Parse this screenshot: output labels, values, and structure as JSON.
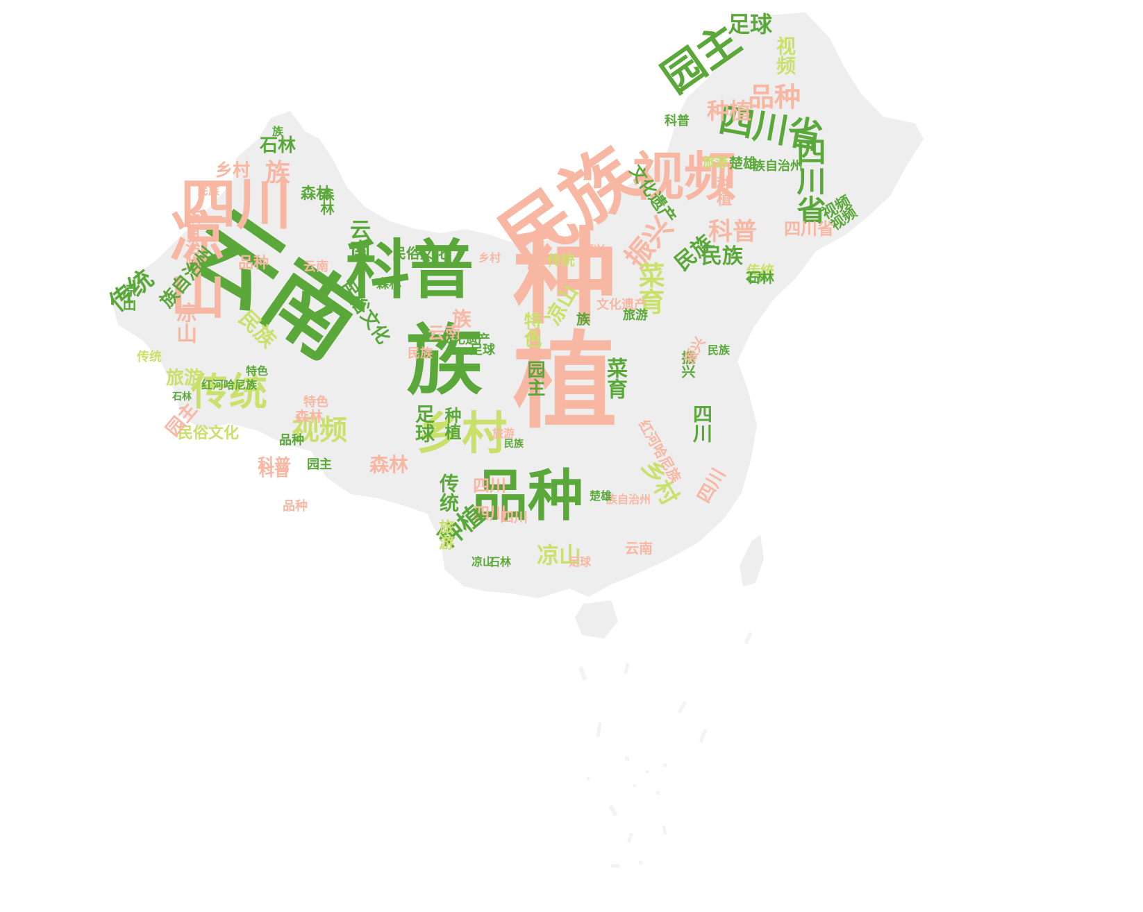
{
  "palette": {
    "green_dark": "#5aa83a",
    "green_light": "#c9e06b",
    "salmon": "#f7b7a3",
    "map_fill": "#eeeeee"
  },
  "words": [
    {
      "text": "种植",
      "color": "salmon"
    },
    {
      "text": "云南",
      "color": "green_dark"
    },
    {
      "text": "科普",
      "color": "green_dark"
    },
    {
      "text": "族",
      "color": "green_dark"
    },
    {
      "text": "民族",
      "color": "salmon"
    },
    {
      "text": "视频",
      "color": "salmon"
    },
    {
      "text": "四川",
      "color": "salmon"
    },
    {
      "text": "凉山",
      "color": "salmon"
    },
    {
      "text": "品种",
      "color": "green_dark"
    },
    {
      "text": "乡村",
      "color": "green_light"
    },
    {
      "text": "传统",
      "color": "green_light"
    },
    {
      "text": "园主",
      "color": "green_dark"
    },
    {
      "text": "四川省",
      "color": "green_dark"
    },
    {
      "text": "品种",
      "color": "salmon"
    },
    {
      "text": "种植",
      "color": "salmon"
    },
    {
      "text": "足球",
      "color": "green_dark"
    },
    {
      "text": "视频",
      "color": "green_light"
    },
    {
      "text": "四川省",
      "color": "green_dark"
    },
    {
      "text": "科普",
      "color": "salmon"
    },
    {
      "text": "振兴",
      "color": "salmon"
    },
    {
      "text": "文化遗产",
      "color": "green_dark"
    },
    {
      "text": "民族",
      "color": "green_dark"
    },
    {
      "text": "视频",
      "color": "green_dark"
    },
    {
      "text": "菜育",
      "color": "green_light"
    },
    {
      "text": "菜育",
      "color": "green_dark"
    },
    {
      "text": "四川",
      "color": "green_dark"
    },
    {
      "text": "乡村",
      "color": "green_light"
    },
    {
      "text": "凉山",
      "color": "green_light"
    },
    {
      "text": "四川",
      "color": "salmon"
    },
    {
      "text": "四川",
      "color": "salmon"
    },
    {
      "text": "种植",
      "color": "green_dark"
    },
    {
      "text": "传统",
      "color": "green_dark"
    },
    {
      "text": "云南",
      "color": "salmon"
    },
    {
      "text": "视频",
      "color": "green_light"
    },
    {
      "text": "传统",
      "color": "green_dark"
    },
    {
      "text": "民族",
      "color": "green_light"
    },
    {
      "text": "森林",
      "color": "salmon"
    },
    {
      "text": "科普",
      "color": "salmon"
    },
    {
      "text": "园主",
      "color": "green_dark"
    },
    {
      "text": "民俗文化",
      "color": "green_light"
    },
    {
      "text": "旅游",
      "color": "green_light"
    },
    {
      "text": "红河哈尼族",
      "color": "green_dark"
    },
    {
      "text": "石林",
      "color": "green_dark"
    },
    {
      "text": "乡村",
      "color": "salmon"
    },
    {
      "text": "族",
      "color": "salmon"
    },
    {
      "text": "石林",
      "color": "green_dark"
    },
    {
      "text": "森林",
      "color": "green_dark"
    },
    {
      "text": "民族",
      "color": "salmon"
    },
    {
      "text": "族自治州",
      "color": "salmon"
    },
    {
      "text": "品种",
      "color": "salmon"
    },
    {
      "text": "云南",
      "color": "green_dark"
    },
    {
      "text": "民俗文化",
      "color": "green_dark"
    },
    {
      "text": "特色",
      "color": "green_light"
    },
    {
      "text": "足球",
      "color": "green_dark"
    },
    {
      "text": "园主",
      "color": "green_dark"
    },
    {
      "text": "旅游",
      "color": "green_light"
    },
    {
      "text": "楚雄",
      "color": "green_dark"
    },
    {
      "text": "族自治州",
      "color": "green_dark"
    },
    {
      "text": "森林",
      "color": "salmon"
    },
    {
      "text": "特色",
      "color": "salmon"
    },
    {
      "text": "振兴",
      "color": "green_dark"
    },
    {
      "text": "四川",
      "color": "salmon"
    },
    {
      "text": "凉山",
      "color": "green_light"
    },
    {
      "text": "种植",
      "color": "green_dark"
    },
    {
      "text": "旅游",
      "color": "green_light"
    },
    {
      "text": "云南",
      "color": "salmon"
    },
    {
      "text": "传统",
      "color": "green_light"
    },
    {
      "text": "石林",
      "color": "green_dark"
    },
    {
      "text": "族",
      "color": "green_dark"
    },
    {
      "text": "族",
      "color": "green_dark"
    },
    {
      "text": "民族",
      "color": "salmon"
    },
    {
      "text": "足球",
      "color": "green_dark"
    },
    {
      "text": "文化遗产",
      "color": "green_dark"
    },
    {
      "text": "特色",
      "color": "green_dark"
    },
    {
      "text": "园主",
      "color": "salmon"
    },
    {
      "text": "品种",
      "color": "green_dark"
    },
    {
      "text": "民族",
      "color": "green_dark"
    },
    {
      "text": "科普",
      "color": "salmon"
    },
    {
      "text": "凉山",
      "color": "salmon"
    },
    {
      "text": "森林",
      "color": "green_dark"
    },
    {
      "text": "族自治州",
      "color": "green_dark"
    },
    {
      "text": "传统",
      "color": "green_light"
    },
    {
      "text": "红河哈尼族",
      "color": "salmon"
    },
    {
      "text": "族自治州",
      "color": "salmon"
    },
    {
      "text": "四川省",
      "color": "salmon"
    },
    {
      "text": "云南",
      "color": "salmon"
    },
    {
      "text": "民俗文化",
      "color": "green_dark"
    },
    {
      "text": "石林",
      "color": "green_dark"
    },
    {
      "text": "凉山",
      "color": "green_dark"
    },
    {
      "text": "四川",
      "color": "salmon"
    },
    {
      "text": "旅游",
      "color": "salmon"
    },
    {
      "text": "楚雄",
      "color": "green_dark"
    },
    {
      "text": "民族",
      "color": "green_dark"
    },
    {
      "text": "族",
      "color": "salmon"
    },
    {
      "text": "乡村",
      "color": "salmon"
    },
    {
      "text": "振兴",
      "color": "salmon"
    },
    {
      "text": "视频",
      "color": "green_dark"
    },
    {
      "text": "品种",
      "color": "salmon"
    },
    {
      "text": "科普",
      "color": "green_dark"
    },
    {
      "text": "石林",
      "color": "green_dark"
    },
    {
      "text": "森林",
      "color": "green_dark"
    },
    {
      "text": "凉山",
      "color": "green_dark"
    },
    {
      "text": "传统",
      "color": "green_light"
    },
    {
      "text": "种植",
      "color": "salmon"
    },
    {
      "text": "振兴",
      "color": "salmon"
    },
    {
      "text": "文化遗产",
      "color": "salmon"
    },
    {
      "text": "足球",
      "color": "salmon"
    },
    {
      "text": "民族",
      "color": "green_dark"
    },
    {
      "text": "旅游",
      "color": "green_dark"
    }
  ]
}
